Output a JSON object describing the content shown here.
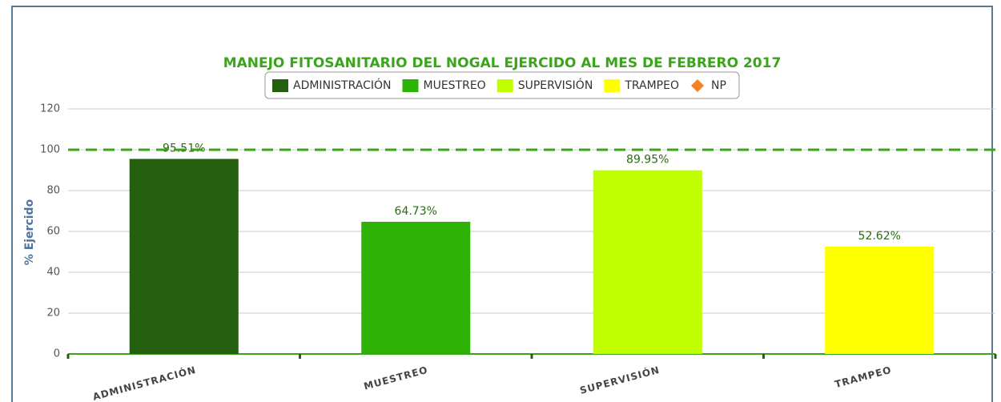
{
  "chart_data": {
    "type": "bar",
    "title": "MANEJO FITOSANITARIO DEL NOGAL EJERCIDO AL MES DE FEBRERO 2017",
    "y_label": "% Ejercido",
    "categories": [
      "ADMINISTRACIÓN",
      "MUESTREO",
      "SUPERVISIÓN",
      "TRAMPEO"
    ],
    "values": [
      95.51,
      64.73,
      89.95,
      52.62
    ],
    "value_labels": [
      "95.51%",
      "64.73%",
      "89.95%",
      "52.62%"
    ],
    "colors": [
      "#245e0f",
      "#2db306",
      "#bfff00",
      "#ffff00"
    ],
    "legend": [
      {
        "name": "ADMINISTRACIÓN",
        "color": "#245e0f",
        "marker": "square"
      },
      {
        "name": "MUESTREO",
        "color": "#2db306",
        "marker": "square"
      },
      {
        "name": "SUPERVISIÓN",
        "color": "#bfff00",
        "marker": "square"
      },
      {
        "name": "TRAMPEO",
        "color": "#ffff00",
        "marker": "square"
      },
      {
        "name": "NP",
        "color": "#f58220",
        "marker": "diamond"
      }
    ],
    "reference_line": {
      "value": 100,
      "color": "#3aa51a"
    },
    "ylim": [
      0,
      120
    ],
    "yticks": [
      0,
      20,
      40,
      60,
      80,
      100,
      120
    ],
    "grid": true
  }
}
